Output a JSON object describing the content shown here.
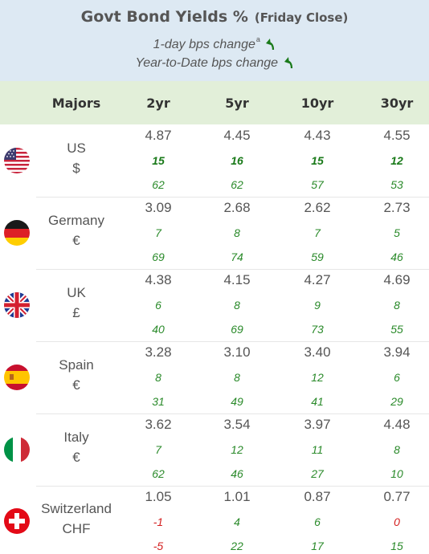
{
  "header": {
    "title": "Govt Bond Yields %",
    "subtitle": "(Friday Close)",
    "legend_1day": "1-day bps change",
    "legend_1day_sup": "a",
    "legend_ytd": "Year-to-Date bps change"
  },
  "columns": {
    "majors": "Majors",
    "c2yr": "2yr",
    "c5yr": "5yr",
    "c10yr": "10yr",
    "c30yr": "30yr"
  },
  "rows": [
    {
      "name": "US",
      "currency": "$",
      "flag": "us-flag-icon",
      "yields": [
        "4.87",
        "4.45",
        "4.43",
        "4.55"
      ],
      "day": [
        "15",
        "16",
        "15",
        "12"
      ],
      "ytd": [
        "62",
        "62",
        "57",
        "53"
      ]
    },
    {
      "name": "Germany",
      "currency": "€",
      "flag": "germany-flag-icon",
      "yields": [
        "3.09",
        "2.68",
        "2.62",
        "2.73"
      ],
      "day": [
        "7",
        "8",
        "7",
        "5"
      ],
      "ytd": [
        "69",
        "74",
        "59",
        "46"
      ]
    },
    {
      "name": "UK",
      "currency": "£",
      "flag": "uk-flag-icon",
      "yields": [
        "4.38",
        "4.15",
        "4.27",
        "4.69"
      ],
      "day": [
        "6",
        "8",
        "9",
        "8"
      ],
      "ytd": [
        "40",
        "69",
        "73",
        "55"
      ]
    },
    {
      "name": "Spain",
      "currency": "€",
      "flag": "spain-flag-icon",
      "yields": [
        "3.28",
        "3.10",
        "3.40",
        "3.94"
      ],
      "day": [
        "8",
        "8",
        "12",
        "6"
      ],
      "ytd": [
        "31",
        "49",
        "41",
        "29"
      ]
    },
    {
      "name": "Italy",
      "currency": "€",
      "flag": "italy-flag-icon",
      "yields": [
        "3.62",
        "3.54",
        "3.97",
        "4.48"
      ],
      "day": [
        "7",
        "12",
        "11",
        "8"
      ],
      "ytd": [
        "62",
        "46",
        "27",
        "10"
      ]
    },
    {
      "name": "Switzerland",
      "currency": "CHF",
      "flag": "switzerland-flag-icon",
      "yields": [
        "1.05",
        "1.01",
        "0.87",
        "0.77"
      ],
      "day": [
        "-1",
        "4",
        "6",
        "0"
      ],
      "ytd": [
        "-5",
        "22",
        "17",
        "15"
      ]
    }
  ],
  "colors": {
    "header_bg": "#dde9f3",
    "colheader_bg": "#e2efd9",
    "positive": "#2a8a2a",
    "negative": "#d42020"
  }
}
